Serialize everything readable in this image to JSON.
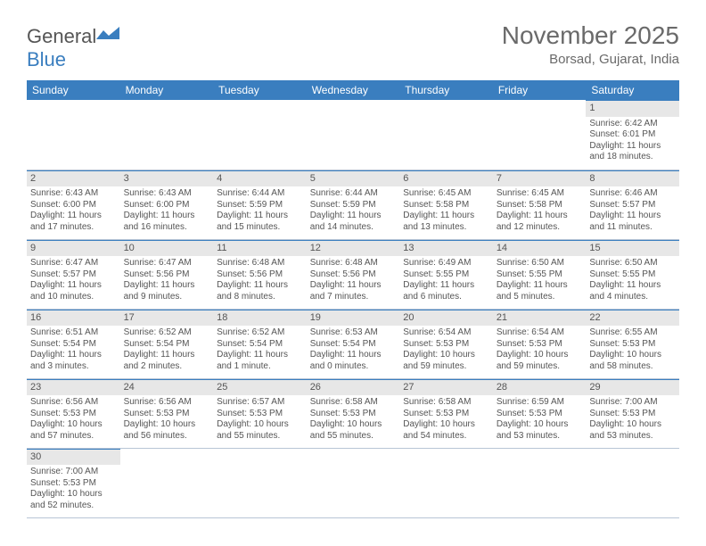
{
  "logo": {
    "text1": "General",
    "text2": "Blue"
  },
  "title": "November 2025",
  "location": "Borsad, Gujarat, India",
  "colors": {
    "header_bg": "#3a7ebf",
    "daynum_bg": "#e7e7e7",
    "border": "#b8c5d6",
    "text": "#555555"
  },
  "weekdays": [
    "Sunday",
    "Monday",
    "Tuesday",
    "Wednesday",
    "Thursday",
    "Friday",
    "Saturday"
  ],
  "weeks": [
    [
      null,
      null,
      null,
      null,
      null,
      null,
      {
        "n": "1",
        "sr": "Sunrise: 6:42 AM",
        "ss": "Sunset: 6:01 PM",
        "dl": "Daylight: 11 hours and 18 minutes."
      }
    ],
    [
      {
        "n": "2",
        "sr": "Sunrise: 6:43 AM",
        "ss": "Sunset: 6:00 PM",
        "dl": "Daylight: 11 hours and 17 minutes."
      },
      {
        "n": "3",
        "sr": "Sunrise: 6:43 AM",
        "ss": "Sunset: 6:00 PM",
        "dl": "Daylight: 11 hours and 16 minutes."
      },
      {
        "n": "4",
        "sr": "Sunrise: 6:44 AM",
        "ss": "Sunset: 5:59 PM",
        "dl": "Daylight: 11 hours and 15 minutes."
      },
      {
        "n": "5",
        "sr": "Sunrise: 6:44 AM",
        "ss": "Sunset: 5:59 PM",
        "dl": "Daylight: 11 hours and 14 minutes."
      },
      {
        "n": "6",
        "sr": "Sunrise: 6:45 AM",
        "ss": "Sunset: 5:58 PM",
        "dl": "Daylight: 11 hours and 13 minutes."
      },
      {
        "n": "7",
        "sr": "Sunrise: 6:45 AM",
        "ss": "Sunset: 5:58 PM",
        "dl": "Daylight: 11 hours and 12 minutes."
      },
      {
        "n": "8",
        "sr": "Sunrise: 6:46 AM",
        "ss": "Sunset: 5:57 PM",
        "dl": "Daylight: 11 hours and 11 minutes."
      }
    ],
    [
      {
        "n": "9",
        "sr": "Sunrise: 6:47 AM",
        "ss": "Sunset: 5:57 PM",
        "dl": "Daylight: 11 hours and 10 minutes."
      },
      {
        "n": "10",
        "sr": "Sunrise: 6:47 AM",
        "ss": "Sunset: 5:56 PM",
        "dl": "Daylight: 11 hours and 9 minutes."
      },
      {
        "n": "11",
        "sr": "Sunrise: 6:48 AM",
        "ss": "Sunset: 5:56 PM",
        "dl": "Daylight: 11 hours and 8 minutes."
      },
      {
        "n": "12",
        "sr": "Sunrise: 6:48 AM",
        "ss": "Sunset: 5:56 PM",
        "dl": "Daylight: 11 hours and 7 minutes."
      },
      {
        "n": "13",
        "sr": "Sunrise: 6:49 AM",
        "ss": "Sunset: 5:55 PM",
        "dl": "Daylight: 11 hours and 6 minutes."
      },
      {
        "n": "14",
        "sr": "Sunrise: 6:50 AM",
        "ss": "Sunset: 5:55 PM",
        "dl": "Daylight: 11 hours and 5 minutes."
      },
      {
        "n": "15",
        "sr": "Sunrise: 6:50 AM",
        "ss": "Sunset: 5:55 PM",
        "dl": "Daylight: 11 hours and 4 minutes."
      }
    ],
    [
      {
        "n": "16",
        "sr": "Sunrise: 6:51 AM",
        "ss": "Sunset: 5:54 PM",
        "dl": "Daylight: 11 hours and 3 minutes."
      },
      {
        "n": "17",
        "sr": "Sunrise: 6:52 AM",
        "ss": "Sunset: 5:54 PM",
        "dl": "Daylight: 11 hours and 2 minutes."
      },
      {
        "n": "18",
        "sr": "Sunrise: 6:52 AM",
        "ss": "Sunset: 5:54 PM",
        "dl": "Daylight: 11 hours and 1 minute."
      },
      {
        "n": "19",
        "sr": "Sunrise: 6:53 AM",
        "ss": "Sunset: 5:54 PM",
        "dl": "Daylight: 11 hours and 0 minutes."
      },
      {
        "n": "20",
        "sr": "Sunrise: 6:54 AM",
        "ss": "Sunset: 5:53 PM",
        "dl": "Daylight: 10 hours and 59 minutes."
      },
      {
        "n": "21",
        "sr": "Sunrise: 6:54 AM",
        "ss": "Sunset: 5:53 PM",
        "dl": "Daylight: 10 hours and 59 minutes."
      },
      {
        "n": "22",
        "sr": "Sunrise: 6:55 AM",
        "ss": "Sunset: 5:53 PM",
        "dl": "Daylight: 10 hours and 58 minutes."
      }
    ],
    [
      {
        "n": "23",
        "sr": "Sunrise: 6:56 AM",
        "ss": "Sunset: 5:53 PM",
        "dl": "Daylight: 10 hours and 57 minutes."
      },
      {
        "n": "24",
        "sr": "Sunrise: 6:56 AM",
        "ss": "Sunset: 5:53 PM",
        "dl": "Daylight: 10 hours and 56 minutes."
      },
      {
        "n": "25",
        "sr": "Sunrise: 6:57 AM",
        "ss": "Sunset: 5:53 PM",
        "dl": "Daylight: 10 hours and 55 minutes."
      },
      {
        "n": "26",
        "sr": "Sunrise: 6:58 AM",
        "ss": "Sunset: 5:53 PM",
        "dl": "Daylight: 10 hours and 55 minutes."
      },
      {
        "n": "27",
        "sr": "Sunrise: 6:58 AM",
        "ss": "Sunset: 5:53 PM",
        "dl": "Daylight: 10 hours and 54 minutes."
      },
      {
        "n": "28",
        "sr": "Sunrise: 6:59 AM",
        "ss": "Sunset: 5:53 PM",
        "dl": "Daylight: 10 hours and 53 minutes."
      },
      {
        "n": "29",
        "sr": "Sunrise: 7:00 AM",
        "ss": "Sunset: 5:53 PM",
        "dl": "Daylight: 10 hours and 53 minutes."
      }
    ],
    [
      {
        "n": "30",
        "sr": "Sunrise: 7:00 AM",
        "ss": "Sunset: 5:53 PM",
        "dl": "Daylight: 10 hours and 52 minutes."
      },
      null,
      null,
      null,
      null,
      null,
      null
    ]
  ]
}
